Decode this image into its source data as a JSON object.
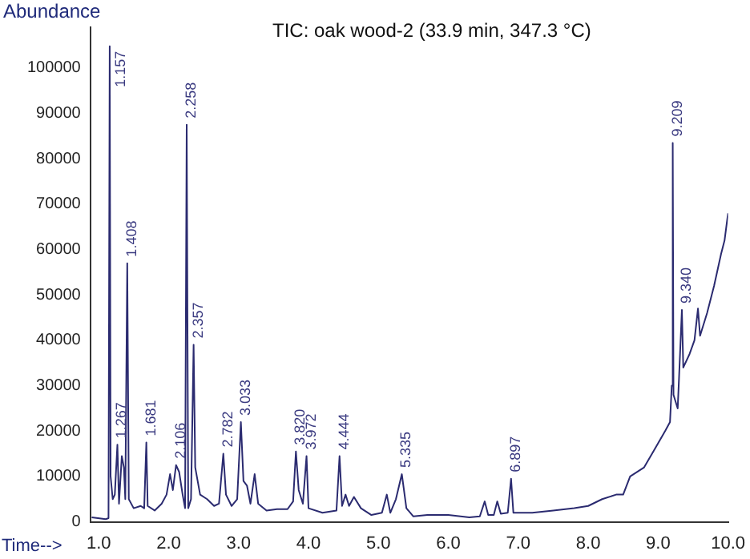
{
  "chart_data": {
    "type": "line",
    "title": "TIC: oak wood-2 (33.9 min, 347.3 °C)",
    "xlabel": "Time-->",
    "ylabel": "Abundance",
    "xlim": [
      0.88,
      10.0
    ],
    "ylim": [
      0,
      109000
    ],
    "xticks": [
      {
        "value": 1,
        "label": "1.0"
      },
      {
        "value": 2,
        "label": "2.0"
      },
      {
        "value": 3,
        "label": "3.0"
      },
      {
        "value": 4,
        "label": "4.0"
      },
      {
        "value": 5,
        "label": "5.0"
      },
      {
        "value": 6,
        "label": "6.0"
      },
      {
        "value": 7,
        "label": "7.0"
      },
      {
        "value": 8,
        "label": "8.0"
      },
      {
        "value": 9,
        "label": "9.0"
      },
      {
        "value": 10,
        "label": "10.0"
      }
    ],
    "yticks": [
      0,
      10000,
      20000,
      30000,
      40000,
      50000,
      60000,
      70000,
      80000,
      90000,
      100000
    ],
    "grid": false,
    "legend": false,
    "marker": "none",
    "line_style": "solid",
    "series": [
      {
        "color": "#2b2b70",
        "x": [
          0.9,
          1.1,
          1.14,
          1.157,
          1.17,
          1.2,
          1.23,
          1.267,
          1.29,
          1.33,
          1.36,
          1.38,
          1.408,
          1.43,
          1.5,
          1.6,
          1.65,
          1.681,
          1.7,
          1.8,
          1.9,
          1.97,
          2.02,
          2.06,
          2.106,
          2.15,
          2.2,
          2.235,
          2.258,
          2.28,
          2.32,
          2.357,
          2.38,
          2.45,
          2.55,
          2.65,
          2.72,
          2.782,
          2.82,
          2.9,
          2.98,
          3.033,
          3.07,
          3.12,
          3.17,
          3.23,
          3.28,
          3.4,
          3.55,
          3.7,
          3.78,
          3.82,
          3.86,
          3.92,
          3.972,
          4.0,
          4.2,
          4.4,
          4.444,
          4.48,
          4.53,
          4.58,
          4.65,
          4.75,
          4.9,
          5.05,
          5.12,
          5.17,
          5.25,
          5.335,
          5.4,
          5.5,
          5.7,
          6.0,
          6.3,
          6.45,
          6.52,
          6.57,
          6.65,
          6.7,
          6.75,
          6.85,
          6.897,
          6.93,
          7.2,
          7.5,
          7.8,
          8.0,
          8.2,
          8.4,
          8.5,
          8.6,
          8.8,
          8.95,
          9.1,
          9.17,
          9.195,
          9.209,
          9.22,
          9.28,
          9.3,
          9.34,
          9.36,
          9.45,
          9.52,
          9.57,
          9.6,
          9.7,
          9.8,
          9.9,
          9.95,
          10.0
        ],
        "values": [
          1000,
          600,
          800,
          104800,
          10000,
          5000,
          6000,
          17000,
          4000,
          14500,
          12000,
          5000,
          57000,
          5000,
          3000,
          3500,
          3000,
          17500,
          3500,
          2500,
          4000,
          6000,
          10500,
          7000,
          12500,
          11000,
          6000,
          3000,
          87500,
          3000,
          5000,
          39000,
          12000,
          6000,
          5000,
          3500,
          4000,
          15000,
          6000,
          3500,
          5000,
          22000,
          9000,
          8000,
          4000,
          10500,
          4000,
          2500,
          2800,
          2800,
          4500,
          15500,
          7000,
          4000,
          14500,
          3000,
          2000,
          2500,
          14500,
          3500,
          6000,
          3500,
          5500,
          3000,
          1500,
          2000,
          6000,
          2000,
          5000,
          10500,
          3000,
          1200,
          1500,
          1500,
          1000,
          1200,
          4500,
          1500,
          1500,
          4500,
          1800,
          2000,
          9500,
          2000,
          2000,
          2500,
          3000,
          3500,
          5000,
          6000,
          6000,
          10000,
          12000,
          16000,
          20000,
          22000,
          30000,
          83500,
          28000,
          25000,
          32000,
          46700,
          34000,
          37000,
          40000,
          47000,
          41000,
          46000,
          52000,
          59000,
          62000,
          68000
        ]
      }
    ],
    "annotations": [
      {
        "text": "1.157",
        "x": 1.157,
        "y": 104800
      },
      {
        "text": "1.267",
        "x": 1.267,
        "y": 17000
      },
      {
        "text": "1.408",
        "x": 1.408,
        "y": 57000
      },
      {
        "text": "1.681",
        "x": 1.681,
        "y": 17500
      },
      {
        "text": "2.106",
        "x": 2.106,
        "y": 12500
      },
      {
        "text": "2.258",
        "x": 2.258,
        "y": 87500
      },
      {
        "text": "2.357",
        "x": 2.357,
        "y": 39000
      },
      {
        "text": "2.782",
        "x": 2.782,
        "y": 15000
      },
      {
        "text": "3.033",
        "x": 3.033,
        "y": 22000
      },
      {
        "text": "3.820",
        "x": 3.82,
        "y": 15500
      },
      {
        "text": "3.972",
        "x": 3.972,
        "y": 14500
      },
      {
        "text": "4.444",
        "x": 4.444,
        "y": 14500
      },
      {
        "text": "5.335",
        "x": 5.335,
        "y": 10500
      },
      {
        "text": "6.897",
        "x": 6.897,
        "y": 9500
      },
      {
        "text": "9.209",
        "x": 9.209,
        "y": 83500
      },
      {
        "text": "9.340",
        "x": 9.34,
        "y": 46700
      }
    ]
  }
}
